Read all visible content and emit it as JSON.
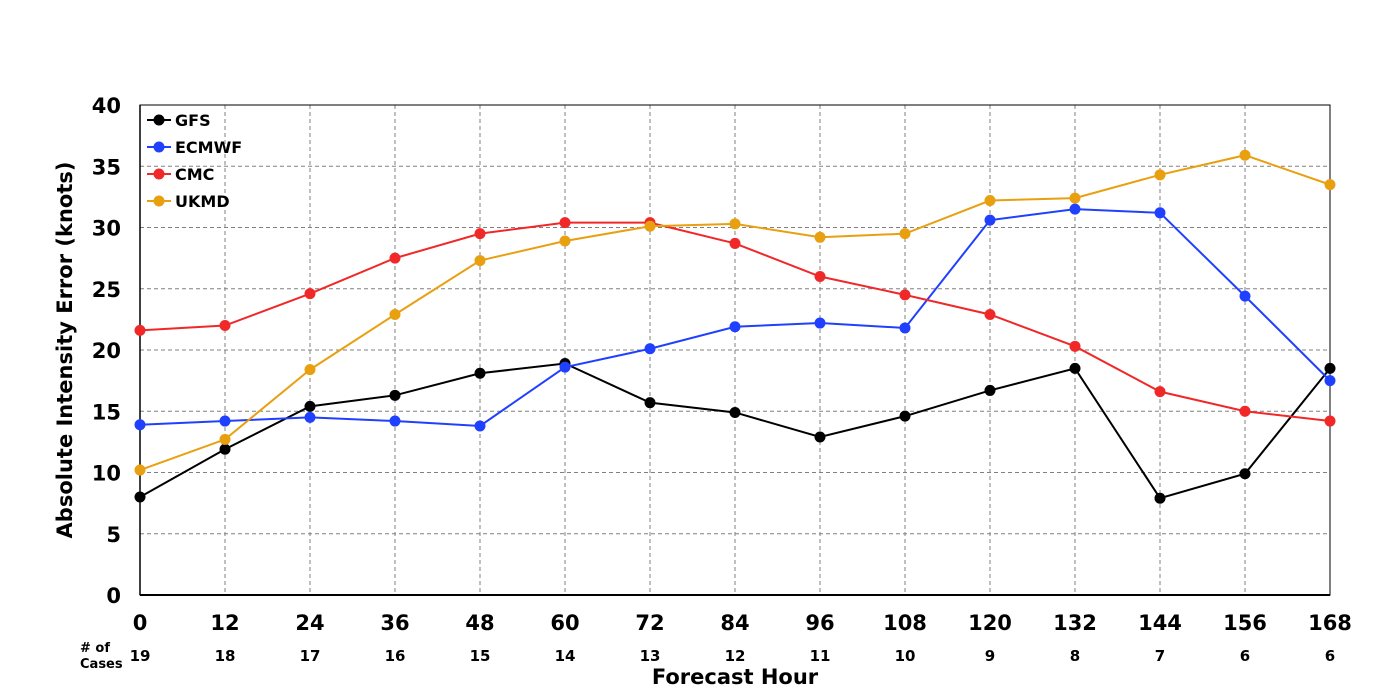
{
  "chart_data": {
    "type": "line",
    "title": "",
    "xlabel": "Forecast Hour",
    "ylabel": "Absolute Intensity Error (knots)",
    "x": [
      0,
      12,
      24,
      36,
      48,
      60,
      72,
      84,
      96,
      108,
      120,
      132,
      144,
      156,
      168
    ],
    "xlim": [
      0,
      168
    ],
    "ylim": [
      0,
      40
    ],
    "yticks": [
      0,
      5,
      10,
      15,
      20,
      25,
      30,
      35,
      40
    ],
    "grid": true,
    "legend_position": "top-left",
    "cases_label_line1": "# of",
    "cases_label_line2": "Cases",
    "cases": [
      19,
      18,
      17,
      16,
      15,
      14,
      13,
      12,
      11,
      10,
      9,
      8,
      7,
      6,
      6
    ],
    "series": [
      {
        "name": "GFS",
        "color": "#000000",
        "values": [
          8.0,
          11.9,
          15.4,
          16.3,
          18.1,
          18.9,
          15.7,
          14.9,
          12.9,
          14.6,
          16.7,
          18.5,
          7.9,
          9.9,
          18.5
        ]
      },
      {
        "name": "ECMWF",
        "color": "#2040ff",
        "values": [
          13.9,
          14.2,
          14.5,
          14.2,
          13.8,
          18.6,
          20.1,
          21.9,
          22.2,
          21.8,
          30.6,
          31.5,
          31.2,
          24.4,
          17.5
        ]
      },
      {
        "name": "CMC",
        "color": "#f02828",
        "values": [
          21.6,
          22.0,
          24.6,
          27.5,
          29.5,
          30.4,
          30.4,
          28.7,
          26.0,
          24.5,
          22.9,
          20.3,
          16.6,
          15.0,
          14.2
        ]
      },
      {
        "name": "UKMD",
        "color": "#e8a010",
        "values": [
          10.2,
          12.7,
          18.4,
          22.9,
          27.3,
          28.9,
          30.1,
          30.3,
          29.2,
          29.5,
          32.2,
          32.4,
          34.3,
          35.9,
          33.5
        ]
      }
    ]
  }
}
